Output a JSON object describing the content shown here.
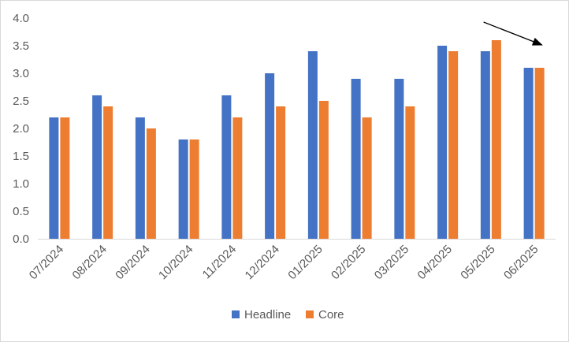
{
  "chart_data": {
    "type": "bar",
    "categories": [
      "07/2024",
      "08/2024",
      "09/2024",
      "10/2024",
      "11/2024",
      "12/2024",
      "01/2025",
      "02/2025",
      "03/2025",
      "04/2025",
      "05/2025",
      "06/2025"
    ],
    "series": [
      {
        "name": "Headline",
        "color": "#4472c4",
        "values": [
          2.2,
          2.6,
          2.2,
          1.8,
          2.6,
          3.0,
          3.4,
          2.9,
          2.9,
          3.5,
          3.4,
          3.1
        ]
      },
      {
        "name": "Core",
        "color": "#ed7d31",
        "values": [
          2.2,
          2.4,
          2.0,
          1.8,
          2.2,
          2.4,
          2.5,
          2.2,
          2.4,
          3.4,
          3.6,
          3.1
        ]
      }
    ],
    "title": "",
    "xlabel": "",
    "ylabel": "",
    "ylim": [
      0,
      4
    ],
    "yticks": [
      "0.0",
      "0.5",
      "1.0",
      "1.5",
      "2.0",
      "2.5",
      "3.0",
      "3.5",
      "4.0"
    ],
    "grid": false,
    "legend_position": "bottom",
    "annotation": "downward arrow pointing to 06/2025"
  }
}
